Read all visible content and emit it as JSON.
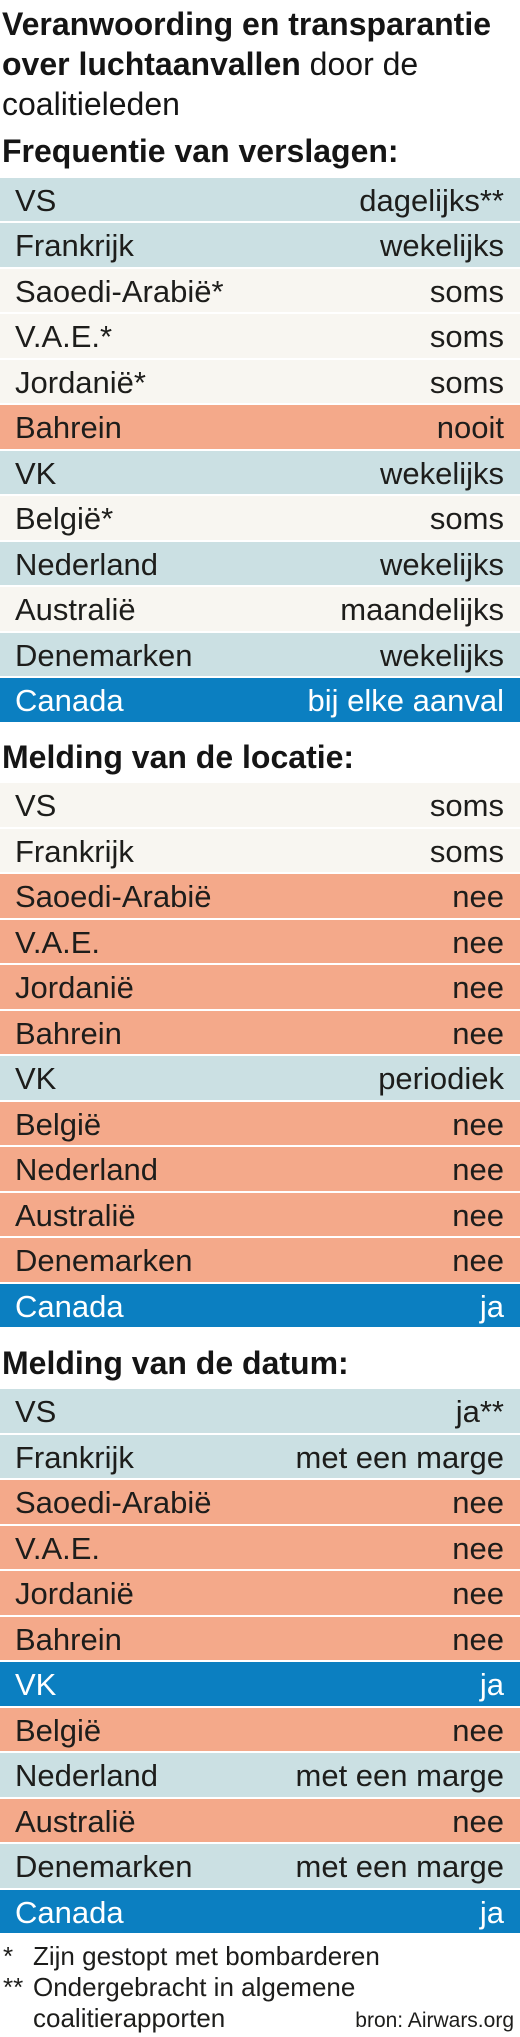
{
  "chart_data": {
    "type": "table",
    "title": "Veranwoording en transparantie over luchtaanvallen",
    "subtitle": "door de coalitieleden",
    "sections": [
      {
        "heading": "Frequentie van verslagen:",
        "rows": [
          {
            "country": "VS",
            "value": "dagelijks**",
            "color": "#cbe0e3"
          },
          {
            "country": "Frankrijk",
            "value": "wekelijks",
            "color": "#cbe0e3"
          },
          {
            "country": "Saoedi-Arabië*",
            "value": "soms",
            "color": "#f8f6f1"
          },
          {
            "country": "V.A.E.*",
            "value": "soms",
            "color": "#f8f6f1"
          },
          {
            "country": "Jordanië*",
            "value": "soms",
            "color": "#f8f6f1"
          },
          {
            "country": "Bahrein",
            "value": "nooit",
            "color": "#f4a98a"
          },
          {
            "country": "VK",
            "value": "wekelijks",
            "color": "#cbe0e3"
          },
          {
            "country": "België*",
            "value": "soms",
            "color": "#f8f6f1"
          },
          {
            "country": "Nederland",
            "value": "wekelijks",
            "color": "#cbe0e3"
          },
          {
            "country": "Australië",
            "value": "maandelijks",
            "color": "#f8f6f1"
          },
          {
            "country": "Denemarken",
            "value": "wekelijks",
            "color": "#cbe0e3"
          },
          {
            "country": "Canada",
            "value": "bij elke aanval",
            "color": "#0b7fc1"
          }
        ]
      },
      {
        "heading": "Melding van de locatie:",
        "rows": [
          {
            "country": "VS",
            "value": "soms",
            "color": "#f8f6f1"
          },
          {
            "country": "Frankrijk",
            "value": "soms",
            "color": "#f8f6f1"
          },
          {
            "country": "Saoedi-Arabië",
            "value": "nee",
            "color": "#f4a98a"
          },
          {
            "country": "V.A.E.",
            "value": "nee",
            "color": "#f4a98a"
          },
          {
            "country": "Jordanië",
            "value": "nee",
            "color": "#f4a98a"
          },
          {
            "country": "Bahrein",
            "value": "nee",
            "color": "#f4a98a"
          },
          {
            "country": "VK",
            "value": "periodiek",
            "color": "#cbe0e3"
          },
          {
            "country": "België",
            "value": "nee",
            "color": "#f4a98a"
          },
          {
            "country": "Nederland",
            "value": "nee",
            "color": "#f4a98a"
          },
          {
            "country": "Australië",
            "value": "nee",
            "color": "#f4a98a"
          },
          {
            "country": "Denemarken",
            "value": "nee",
            "color": "#f4a98a"
          },
          {
            "country": "Canada",
            "value": "ja",
            "color": "#0b7fc1"
          }
        ]
      },
      {
        "heading": "Melding van de datum:",
        "rows": [
          {
            "country": "VS",
            "value": "ja**",
            "color": "#cbe0e3"
          },
          {
            "country": "Frankrijk",
            "value": "met een marge",
            "color": "#cbe0e3"
          },
          {
            "country": "Saoedi-Arabië",
            "value": "nee",
            "color": "#f4a98a"
          },
          {
            "country": "V.A.E.",
            "value": "nee",
            "color": "#f4a98a"
          },
          {
            "country": "Jordanië",
            "value": "nee",
            "color": "#f4a98a"
          },
          {
            "country": "Bahrein",
            "value": "nee",
            "color": "#f4a98a"
          },
          {
            "country": "VK",
            "value": "ja",
            "color": "#0b7fc1"
          },
          {
            "country": "België",
            "value": "nee",
            "color": "#f4a98a"
          },
          {
            "country": "Nederland",
            "value": "met een marge",
            "color": "#cbe0e3"
          },
          {
            "country": "Australië",
            "value": "nee",
            "color": "#f4a98a"
          },
          {
            "country": "Denemarken",
            "value": "met een marge",
            "color": "#cbe0e3"
          },
          {
            "country": "Canada",
            "value": "ja",
            "color": "#0b7fc1"
          }
        ]
      }
    ],
    "footnotes": [
      {
        "mark": "*",
        "text": "Zijn gestopt met bombarderen"
      },
      {
        "mark": "**",
        "text": "Ondergebracht in algemene coalitierapporten"
      }
    ],
    "source": "bron: Airwars.org"
  }
}
